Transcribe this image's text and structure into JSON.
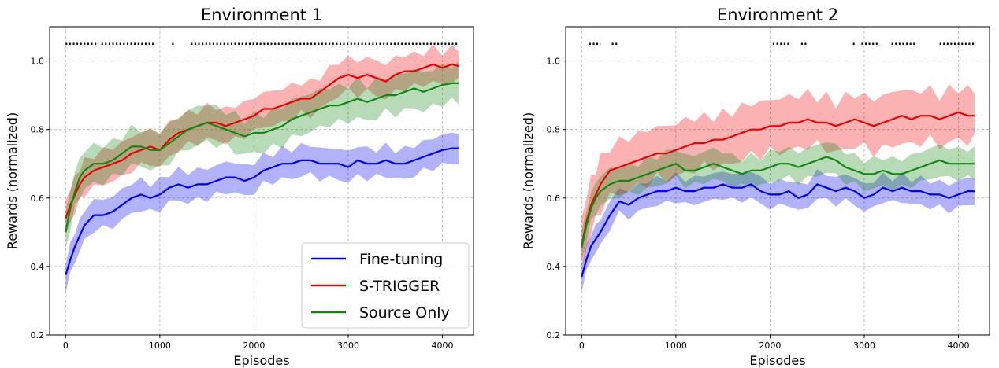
{
  "chart_data": [
    {
      "type": "line",
      "title": "Environment 1",
      "xlabel": "Episodes",
      "ylabel": "Rewards (normalized)",
      "xlim": [
        -170,
        4330
      ],
      "ylim": [
        0.2,
        1.1
      ],
      "xticks": [
        0,
        1000,
        2000,
        3000,
        4000
      ],
      "yticks": [
        0.2,
        0.4,
        0.6,
        0.8,
        1.0
      ],
      "xtick_labels": [
        "0",
        "1000",
        "2000",
        "3000",
        "4000"
      ],
      "ytick_labels": [
        "0.2",
        "0.4",
        "0.6",
        "0.8",
        "1.0"
      ],
      "grid": true,
      "legend": "lower-right",
      "x": [
        0,
        50,
        100,
        150,
        200,
        300,
        400,
        500,
        600,
        700,
        800,
        900,
        1000,
        1100,
        1200,
        1300,
        1400,
        1500,
        1600,
        1700,
        1800,
        1900,
        2000,
        2100,
        2200,
        2300,
        2400,
        2500,
        2600,
        2700,
        2800,
        2900,
        3000,
        3100,
        3200,
        3300,
        3400,
        3500,
        3600,
        3700,
        3800,
        3900,
        4000,
        4100,
        4170
      ],
      "series": [
        {
          "name": "Fine-tuning",
          "color": "#0000ee",
          "values": [
            0.375,
            0.42,
            0.46,
            0.49,
            0.52,
            0.55,
            0.55,
            0.56,
            0.58,
            0.6,
            0.61,
            0.6,
            0.61,
            0.63,
            0.64,
            0.63,
            0.64,
            0.64,
            0.65,
            0.66,
            0.66,
            0.65,
            0.66,
            0.68,
            0.69,
            0.7,
            0.7,
            0.71,
            0.71,
            0.7,
            0.7,
            0.7,
            0.69,
            0.71,
            0.7,
            0.7,
            0.71,
            0.7,
            0.7,
            0.71,
            0.72,
            0.73,
            0.74,
            0.745,
            0.745
          ],
          "band": 0.04
        },
        {
          "name": "S-TRIGGER",
          "color": "#ee0000",
          "values": [
            0.54,
            0.58,
            0.61,
            0.64,
            0.66,
            0.68,
            0.69,
            0.7,
            0.71,
            0.73,
            0.74,
            0.75,
            0.74,
            0.77,
            0.79,
            0.8,
            0.81,
            0.82,
            0.82,
            0.81,
            0.82,
            0.83,
            0.84,
            0.86,
            0.86,
            0.87,
            0.88,
            0.89,
            0.89,
            0.91,
            0.93,
            0.95,
            0.96,
            0.95,
            0.96,
            0.95,
            0.94,
            0.96,
            0.97,
            0.97,
            0.98,
            0.99,
            0.98,
            0.99,
            0.985
          ],
          "band": 0.045
        },
        {
          "name": "Source Only",
          "color": "#118811",
          "values": [
            0.5,
            0.57,
            0.62,
            0.66,
            0.68,
            0.7,
            0.7,
            0.71,
            0.73,
            0.75,
            0.75,
            0.74,
            0.74,
            0.76,
            0.78,
            0.8,
            0.81,
            0.82,
            0.81,
            0.8,
            0.79,
            0.78,
            0.79,
            0.79,
            0.8,
            0.81,
            0.83,
            0.84,
            0.85,
            0.86,
            0.87,
            0.87,
            0.88,
            0.89,
            0.88,
            0.89,
            0.9,
            0.9,
            0.91,
            0.92,
            0.91,
            0.92,
            0.93,
            0.935,
            0.935
          ],
          "band": 0.05
        }
      ],
      "marker_y": 1.05,
      "marker_segments": [
        [
          0,
          340
        ],
        [
          380,
          940
        ],
        [
          1130,
          1150
        ],
        [
          1330,
          4170
        ]
      ]
    },
    {
      "type": "line",
      "title": "Environment 2",
      "xlabel": "Episodes",
      "ylabel": "Rewards (normalized)",
      "xlim": [
        -170,
        4330
      ],
      "ylim": [
        0.2,
        1.1
      ],
      "xticks": [
        0,
        1000,
        2000,
        3000,
        4000
      ],
      "yticks": [
        0.2,
        0.4,
        0.6,
        0.8,
        1.0
      ],
      "xtick_labels": [
        "0",
        "1000",
        "2000",
        "3000",
        "4000"
      ],
      "ytick_labels": [
        "0.2",
        "0.4",
        "0.6",
        "0.8",
        "1.0"
      ],
      "grid": true,
      "x": [
        0,
        50,
        100,
        150,
        200,
        300,
        400,
        500,
        600,
        700,
        800,
        900,
        1000,
        1100,
        1200,
        1300,
        1400,
        1500,
        1600,
        1700,
        1800,
        1900,
        2000,
        2100,
        2200,
        2300,
        2400,
        2500,
        2600,
        2700,
        2800,
        2900,
        3000,
        3100,
        3200,
        3300,
        3400,
        3500,
        3600,
        3700,
        3800,
        3900,
        4000,
        4100,
        4170
      ],
      "series": [
        {
          "name": "Fine-tuning",
          "color": "#0000ee",
          "values": [
            0.37,
            0.42,
            0.46,
            0.48,
            0.5,
            0.55,
            0.59,
            0.58,
            0.6,
            0.61,
            0.62,
            0.62,
            0.63,
            0.62,
            0.62,
            0.63,
            0.63,
            0.64,
            0.63,
            0.63,
            0.64,
            0.62,
            0.61,
            0.61,
            0.62,
            0.6,
            0.61,
            0.64,
            0.63,
            0.62,
            0.63,
            0.62,
            0.6,
            0.61,
            0.63,
            0.62,
            0.63,
            0.62,
            0.62,
            0.61,
            0.61,
            0.6,
            0.61,
            0.62,
            0.62
          ],
          "band": 0.035
        },
        {
          "name": "S-TRIGGER",
          "color": "#ee0000",
          "values": [
            0.46,
            0.53,
            0.58,
            0.61,
            0.64,
            0.68,
            0.69,
            0.7,
            0.71,
            0.72,
            0.73,
            0.73,
            0.74,
            0.75,
            0.76,
            0.76,
            0.77,
            0.77,
            0.78,
            0.79,
            0.8,
            0.8,
            0.81,
            0.81,
            0.82,
            0.82,
            0.83,
            0.82,
            0.82,
            0.81,
            0.82,
            0.83,
            0.82,
            0.81,
            0.82,
            0.83,
            0.84,
            0.83,
            0.84,
            0.84,
            0.83,
            0.84,
            0.85,
            0.84,
            0.84
          ],
          "band": 0.07
        },
        {
          "name": "Source Only",
          "color": "#118811",
          "values": [
            0.455,
            0.52,
            0.57,
            0.6,
            0.62,
            0.64,
            0.65,
            0.65,
            0.66,
            0.67,
            0.68,
            0.69,
            0.7,
            0.68,
            0.68,
            0.69,
            0.7,
            0.69,
            0.68,
            0.67,
            0.68,
            0.68,
            0.69,
            0.7,
            0.7,
            0.69,
            0.7,
            0.71,
            0.72,
            0.71,
            0.69,
            0.68,
            0.67,
            0.67,
            0.68,
            0.67,
            0.67,
            0.68,
            0.69,
            0.7,
            0.71,
            0.7,
            0.7,
            0.7,
            0.7
          ],
          "band": 0.04
        }
      ],
      "marker_y": 1.05,
      "marker_segments": [
        [
          80,
          200
        ],
        [
          320,
          380
        ],
        [
          2030,
          2200
        ],
        [
          2330,
          2400
        ],
        [
          2880,
          2900
        ],
        [
          2970,
          3150
        ],
        [
          3290,
          3550
        ],
        [
          3800,
          4170
        ]
      ]
    }
  ],
  "legend": {
    "items": [
      {
        "label": "Fine-tuning",
        "color": "#0000ee"
      },
      {
        "label": "S-TRIGGER",
        "color": "#ee0000"
      },
      {
        "label": "Source Only",
        "color": "#118811"
      }
    ]
  },
  "colors": {
    "axis": "#000000",
    "grid": "#b0b0b0",
    "marker": "#000000"
  }
}
